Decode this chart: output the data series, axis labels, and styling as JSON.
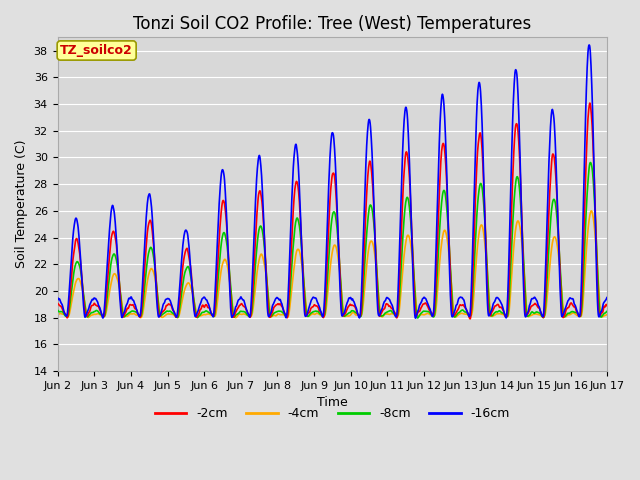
{
  "title": "Tonzi Soil CO2 Profile: Tree (West) Temperatures",
  "xlabel": "Time",
  "ylabel": "Soil Temperature (C)",
  "ylim": [
    14,
    39
  ],
  "yticks": [
    14,
    16,
    18,
    20,
    22,
    24,
    26,
    28,
    30,
    32,
    34,
    36,
    38
  ],
  "xtick_labels": [
    "Jun 2",
    "Jun 3",
    "Jun 4",
    "Jun 5",
    "Jun 6",
    "Jun 7",
    "Jun 8",
    "Jun 9",
    "Jun 10",
    "Jun 11",
    "Jun 12",
    "Jun 13",
    "Jun 14",
    "Jun 15",
    "Jun 16",
    "Jun 17"
  ],
  "legend_label": "TZ_soilco2",
  "series_labels": [
    "-2cm",
    "-4cm",
    "-8cm",
    "-16cm"
  ],
  "series_colors": [
    "#ff0000",
    "#ffaa00",
    "#00cc00",
    "#0000ff"
  ],
  "line_width": 1.2,
  "plot_bg_color": "#d8d8d8",
  "fig_bg_color": "#e0e0e0",
  "grid_color": "#ffffff",
  "title_fontsize": 12,
  "axis_label_fontsize": 9,
  "tick_fontsize": 8,
  "legend_box_facecolor": "#ffff99",
  "legend_box_edgecolor": "#999900",
  "legend_text_color": "#cc0000",
  "annotation_fontsize": 9
}
